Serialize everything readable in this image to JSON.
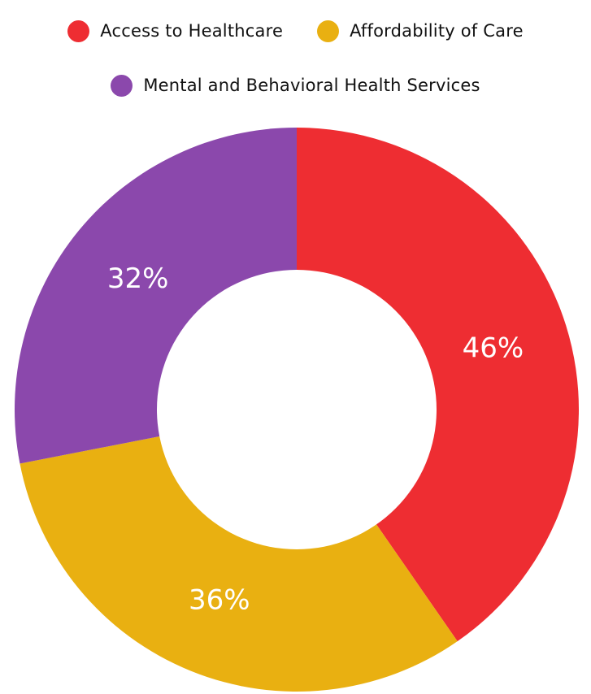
{
  "chart_data": {
    "type": "pie",
    "title": "",
    "legend": "top",
    "series": [
      {
        "name": "Access to Healthcare",
        "value": 46,
        "label": "46%",
        "color": "#EE2D32"
      },
      {
        "name": "Affordability of Care",
        "value": 36,
        "label": "36%",
        "color": "#E9B011"
      },
      {
        "name": "Mental and Behavioral Health Services",
        "value": 32,
        "label": "32%",
        "color": "#8B48AC"
      }
    ],
    "center": "hole"
  }
}
